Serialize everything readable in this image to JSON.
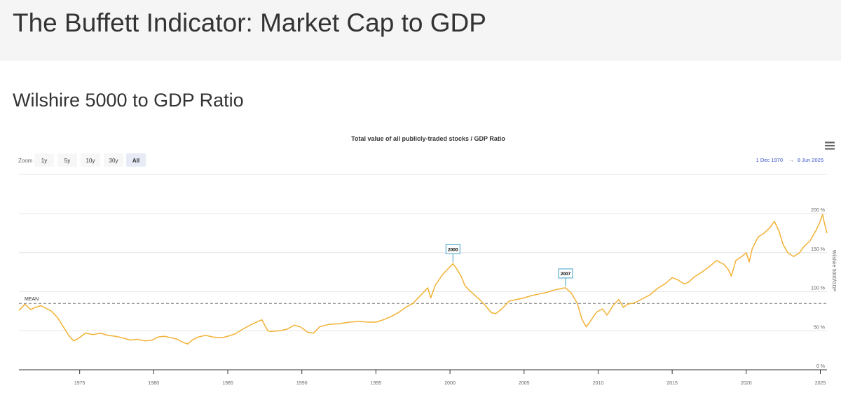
{
  "page": {
    "title": "The Buffett Indicator: Market Cap to GDP",
    "section_title": "Wilshire 5000 to GDP Ratio"
  },
  "controls": {
    "zoom_label": "Zoom",
    "zoom_buttons": [
      "1y",
      "5y",
      "10y",
      "30y",
      "All"
    ],
    "selected_zoom": "All",
    "range_from": "1 Dec 1970",
    "range_arrow": "→",
    "range_to": "8 Jun 2025",
    "menu_icon": "hamburger-menu-icon"
  },
  "colors": {
    "series": "#f2b134",
    "mean_line": "#777777",
    "flag_border": "#42a0c9",
    "range_text": "#3a55c9",
    "selected_zoom_bg": "#e6ebf5",
    "zoom_bg": "#f7f7f7"
  },
  "chart_data": {
    "type": "line",
    "title": "Total value of all publicly-traded stocks / GDP Ratio",
    "ylabel": "Wilshire 5000/GDP",
    "xlim": [
      1970.9,
      2025.45
    ],
    "ylim": [
      0,
      200
    ],
    "y_ticks": [
      0,
      50,
      100,
      150,
      200
    ],
    "y_tick_labels": [
      "0 %",
      "50 %",
      "100 %",
      "150 %",
      "200 %"
    ],
    "x_ticks": [
      1975,
      1980,
      1985,
      1990,
      1995,
      2000,
      2005,
      2010,
      2015,
      2020,
      2025
    ],
    "x_tick_labels": [
      "1975",
      "1980",
      "1985",
      "1990",
      "1995",
      "2000",
      "2005",
      "2010",
      "2015",
      "2020",
      "2025"
    ],
    "mean": {
      "label": "MEAN",
      "value": 85
    },
    "flags": [
      {
        "label": "2000",
        "x": 2000.2,
        "y": 136
      },
      {
        "label": "2007",
        "x": 2007.8,
        "y": 105
      }
    ],
    "series": [
      {
        "name": "Wilshire 5000/GDP",
        "x": [
          1970.9,
          1971.3,
          1971.7,
          1972.0,
          1972.4,
          1972.8,
          1973.1,
          1973.5,
          1973.9,
          1974.3,
          1974.6,
          1974.9,
          1975.4,
          1975.9,
          1976.4,
          1976.9,
          1977.4,
          1977.9,
          1978.4,
          1978.9,
          1979.4,
          1979.9,
          1980.3,
          1980.7,
          1981.2,
          1981.6,
          1982.0,
          1982.3,
          1982.6,
          1983.0,
          1983.5,
          1984.0,
          1984.6,
          1985.0,
          1985.5,
          1986.0,
          1986.6,
          1987.3,
          1987.7,
          1987.9,
          1988.5,
          1989.0,
          1989.5,
          1989.9,
          1990.4,
          1990.8,
          1991.2,
          1991.8,
          1992.5,
          1993.2,
          1993.9,
          1994.5,
          1995.0,
          1995.5,
          1996.0,
          1996.5,
          1997.0,
          1997.5,
          1998.0,
          1998.5,
          1998.7,
          1999.0,
          1999.5,
          1999.9,
          2000.2,
          2000.5,
          2000.8,
          2001.0,
          2001.3,
          2001.7,
          2002.0,
          2002.4,
          2002.8,
          2003.1,
          2003.5,
          2004.0,
          2004.5,
          2005.0,
          2005.5,
          2006.0,
          2006.5,
          2007.0,
          2007.5,
          2007.8,
          2008.2,
          2008.6,
          2008.9,
          2009.2,
          2009.5,
          2009.9,
          2010.3,
          2010.6,
          2011.0,
          2011.4,
          2011.7,
          2012.0,
          2012.5,
          2013.0,
          2013.5,
          2014.0,
          2014.5,
          2015.0,
          2015.4,
          2015.8,
          2016.1,
          2016.5,
          2017.0,
          2017.5,
          2018.0,
          2018.5,
          2018.8,
          2018.99,
          2019.3,
          2019.7,
          2020.0,
          2020.2,
          2020.4,
          2020.8,
          2021.2,
          2021.6,
          2021.9,
          2022.2,
          2022.5,
          2022.8,
          2023.2,
          2023.6,
          2023.9,
          2024.3,
          2024.7,
          2024.95,
          2025.15,
          2025.25,
          2025.45
        ],
        "values": [
          76,
          84,
          77,
          80,
          82,
          78,
          75,
          67,
          55,
          43,
          37,
          40,
          47,
          45,
          47,
          44,
          43,
          41,
          38,
          39,
          37,
          38,
          42,
          43,
          41,
          39,
          35,
          33,
          38,
          42,
          44,
          42,
          41,
          43,
          46,
          52,
          58,
          64,
          50,
          49,
          50,
          52,
          57,
          55,
          48,
          47,
          55,
          58,
          59,
          61,
          62,
          61,
          61,
          64,
          68,
          73,
          80,
          85,
          95,
          105,
          92,
          108,
          122,
          130,
          136,
          128,
          118,
          108,
          102,
          95,
          90,
          82,
          73,
          72,
          78,
          88,
          90,
          92,
          95,
          97,
          99,
          102,
          104,
          105,
          98,
          85,
          65,
          55,
          63,
          74,
          78,
          70,
          82,
          90,
          80,
          84,
          86,
          91,
          96,
          104,
          110,
          118,
          115,
          110,
          112,
          119,
          125,
          132,
          140,
          135,
          128,
          120,
          140,
          145,
          150,
          138,
          155,
          170,
          175,
          182,
          190,
          178,
          160,
          150,
          145,
          150,
          158,
          165,
          178,
          188,
          199,
          190,
          175
        ]
      }
    ]
  }
}
